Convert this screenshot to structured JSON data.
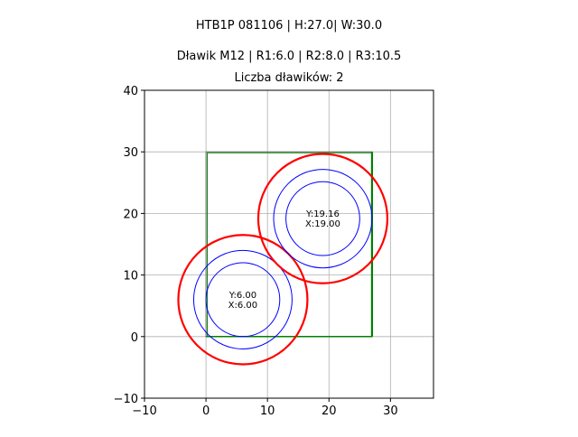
{
  "chart_data": {
    "type": "scatter",
    "title_lines": [
      "HTB1P 081106 | H:27.0| W:30.0",
      "Dławik M12 | R1:6.0 | R2:8.0 | R3:10.5",
      "Liczba dławików: 2"
    ],
    "xlim": [
      -10,
      37
    ],
    "ylim": [
      -10,
      40
    ],
    "xticks": [
      -10,
      0,
      10,
      20,
      30
    ],
    "yticks": [
      -10,
      0,
      10,
      20,
      30,
      40
    ],
    "grid": true,
    "box": {
      "x0": 0,
      "y0": 0,
      "x1": 27,
      "y1": 30
    },
    "radii": {
      "r1": 6.0,
      "r2": 8.0,
      "r3": 10.5
    },
    "colors": {
      "r1": "#0000ff",
      "r2": "#0000ff",
      "r3": "#ff0000",
      "box": "#008000",
      "outline": "#808080",
      "grid": "#b0b0b0"
    },
    "glands": [
      {
        "x": 6.0,
        "y": 6.0,
        "label_y": "Y:6.00",
        "label_x": "X:6.00"
      },
      {
        "x": 19.0,
        "y": 19.16,
        "label_y": "Y:19.16",
        "label_x": "X:19.00"
      }
    ]
  }
}
